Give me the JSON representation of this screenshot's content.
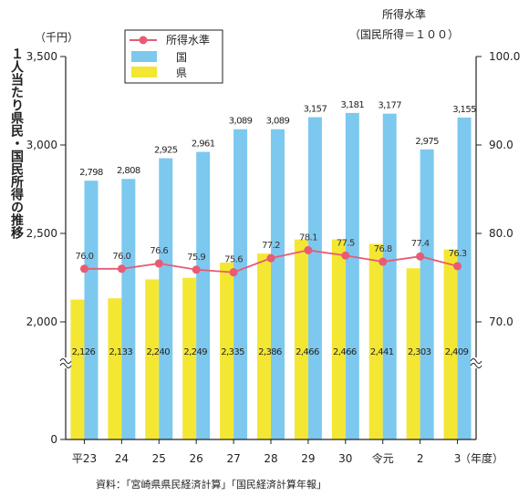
{
  "chart_data": {
    "type": "bar",
    "title": "１人当たり県民・国民所得の推移",
    "left_unit": "（千円）",
    "x_unit": "（年度）",
    "right_axis_title": "所得水準",
    "right_axis_subtitle": "（国民所得＝１００）",
    "source": "資料：「宮崎県県民経済計算」「国民経済計算年報」",
    "categories": [
      "平23",
      "24",
      "25",
      "26",
      "27",
      "28",
      "29",
      "30",
      "令元",
      "2",
      "3"
    ],
    "series": [
      {
        "name": "国",
        "color": "#7DC8EE",
        "values": [
          2798,
          2808,
          2925,
          2961,
          3089,
          3089,
          3157,
          3181,
          3177,
          2975,
          3155
        ],
        "labels": [
          "2,798",
          "2,808",
          "2,925",
          "2,961",
          "3,089",
          "3,089",
          "3,157",
          "3,181",
          "3,177",
          "2,975",
          "3,155"
        ]
      },
      {
        "name": "県",
        "color": "#F3E733",
        "values": [
          2126,
          2133,
          2240,
          2249,
          2335,
          2386,
          2466,
          2466,
          2441,
          2303,
          2409
        ],
        "labels": [
          "2,126",
          "2,133",
          "2,240",
          "2,249",
          "2,335",
          "2,386",
          "2,466",
          "2,466",
          "2,441",
          "2,303",
          "2,409"
        ]
      },
      {
        "name": "所得水準",
        "color": "#E85B74",
        "axis": "right",
        "values": [
          76.0,
          76.0,
          76.6,
          75.9,
          75.6,
          77.2,
          78.1,
          77.5,
          76.8,
          77.4,
          76.3
        ],
        "labels": [
          "76.0",
          "76.0",
          "76.6",
          "75.9",
          "75.6",
          "77.2",
          "78.1",
          "77.5",
          "76.8",
          "77.4",
          "76.3"
        ]
      }
    ],
    "y_left": {
      "ticks": [
        "0",
        "2,000",
        "2,500",
        "3,000",
        "3,500"
      ],
      "tick_values": [
        0,
        2000,
        2500,
        3000,
        3500
      ],
      "axis_break": true,
      "lim": [
        0,
        3500
      ]
    },
    "y_right": {
      "ticks": [
        "70.0",
        "80.0",
        "90.0",
        "100.0"
      ],
      "tick_values": [
        70,
        80,
        90,
        100
      ],
      "axis_break": true,
      "lim": [
        70,
        100
      ]
    },
    "legend_position": "top-left",
    "grid": false
  }
}
